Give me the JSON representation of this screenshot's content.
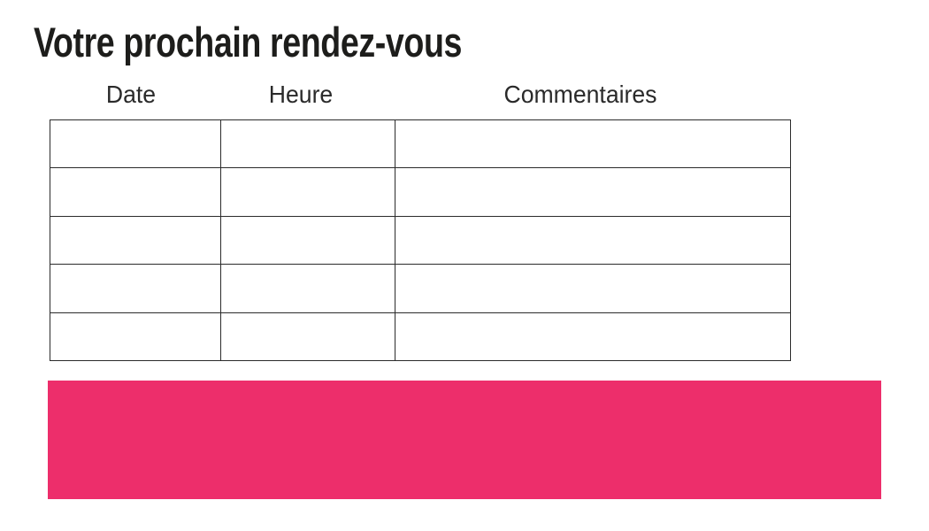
{
  "page": {
    "title": "Votre prochain rendez-vous"
  },
  "appointments": {
    "columns": [
      {
        "key": "date",
        "label": "Date"
      },
      {
        "key": "heure",
        "label": "Heure"
      },
      {
        "key": "commentaires",
        "label": "Commentaires"
      }
    ],
    "rows": [
      {
        "date": "",
        "heure": "",
        "commentaires": ""
      },
      {
        "date": "",
        "heure": "",
        "commentaires": ""
      },
      {
        "date": "",
        "heure": "",
        "commentaires": ""
      },
      {
        "date": "",
        "heure": "",
        "commentaires": ""
      },
      {
        "date": "",
        "heure": "",
        "commentaires": ""
      }
    ]
  },
  "colors": {
    "accent_pink": "#ED2E6B",
    "table_border": "#2b2b2b",
    "title_text": "#1d1d1b",
    "header_text": "#2a2a2a"
  }
}
